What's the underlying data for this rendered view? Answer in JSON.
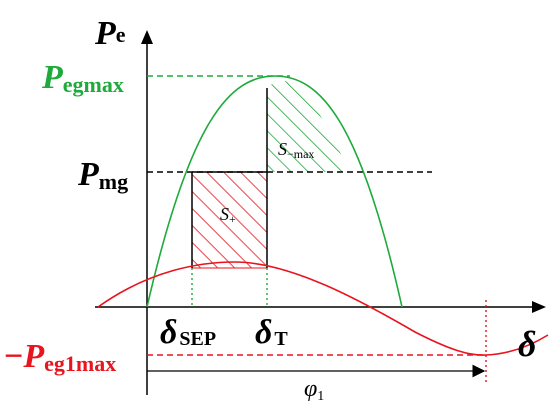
{
  "labels": {
    "y_axis_main": "P",
    "y_axis_sub": "e",
    "pegmax_main": "P",
    "pegmax_sub": "egmax",
    "pmg_main": "P",
    "pmg_sub": "mg",
    "neg_sign": "−",
    "peg1max_main": "P",
    "peg1max_sub": "eg1max",
    "delta_sep_main": "δ",
    "delta_sep_sub": "SEP",
    "delta_t_main": "δ",
    "delta_t_sub": "T",
    "x_axis": "δ",
    "s_plus_main": "S",
    "s_plus_sub": "+",
    "s_minus_main": "S",
    "s_minus_sub": "−max",
    "phi_main": "φ",
    "phi_sub": "1"
  },
  "colors": {
    "green": "#1faa3c",
    "red": "#e8141e",
    "black": "#000000"
  }
}
